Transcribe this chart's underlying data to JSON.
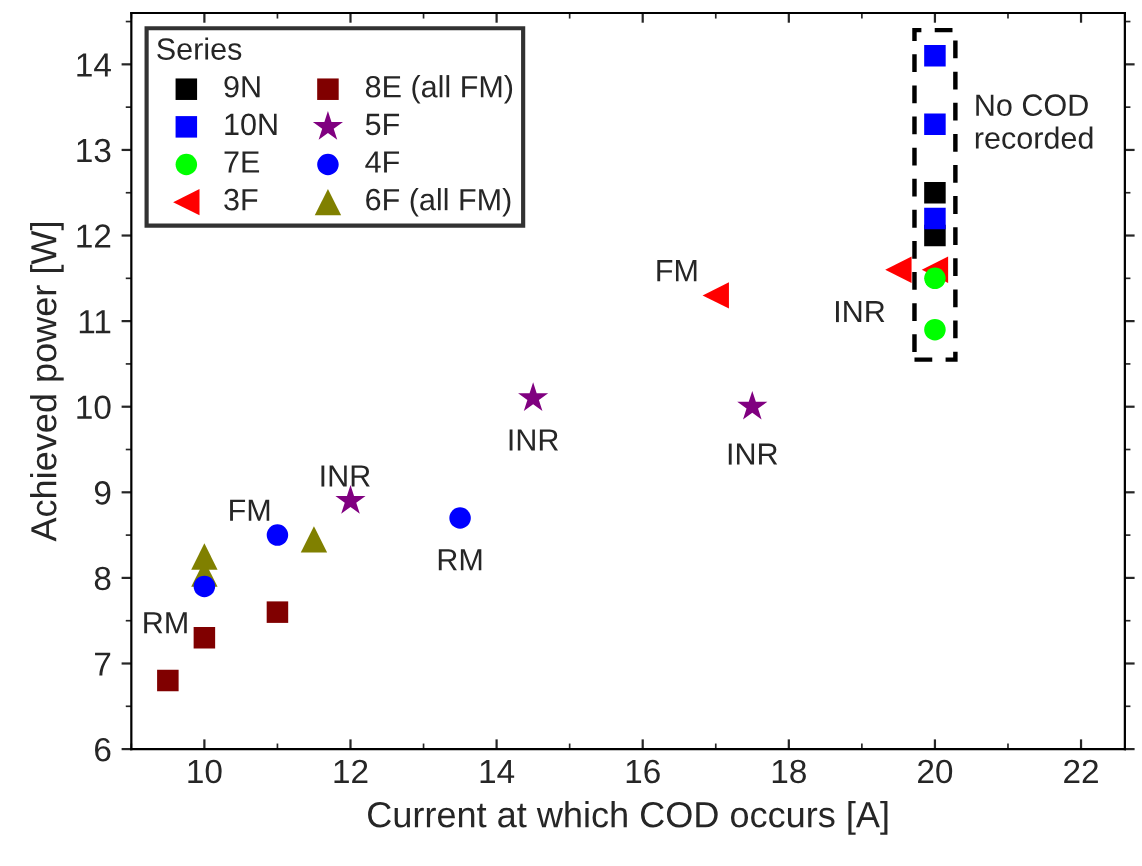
{
  "chart_data": {
    "type": "scatter",
    "xlabel": "Current at which COD occurs [A]",
    "ylabel": "Achieved power [W]",
    "legend_title": "Series",
    "legend": "top left",
    "xlim": [
      9,
      22.6
    ],
    "xticks": [
      10,
      12,
      14,
      16,
      18,
      20,
      22
    ],
    "ylim": [
      6,
      14.6
    ],
    "yticks": [
      6,
      7,
      8,
      9,
      10,
      11,
      12,
      13,
      14
    ],
    "grid": false,
    "series": [
      {
        "name": "9N",
        "color": "#000000",
        "marker": "square",
        "x": [
          20,
          20
        ],
        "values": [
          12.5,
          12.0
        ]
      },
      {
        "name": "10N",
        "color": "#0000ff",
        "marker": "square",
        "x": [
          20,
          20,
          20
        ],
        "values": [
          14.1,
          13.3,
          12.2
        ]
      },
      {
        "name": "7E",
        "color": "#00ff00",
        "marker": "circle",
        "x": [
          20,
          20
        ],
        "values": [
          11.5,
          10.9
        ]
      },
      {
        "name": "3F",
        "color": "#ff0000",
        "marker": "triangle_left",
        "x": [
          17,
          19.5,
          20
        ],
        "values": [
          11.3,
          11.6,
          11.6
        ]
      },
      {
        "name": "8E (all FM)",
        "color": "#800000",
        "marker": "square",
        "x": [
          9.5,
          10,
          11
        ],
        "values": [
          6.8,
          7.3,
          7.6
        ]
      },
      {
        "name": "5F",
        "color": "#800080",
        "marker": "star",
        "x": [
          12,
          14.5,
          17.5
        ],
        "values": [
          8.9,
          10.1,
          10.0
        ]
      },
      {
        "name": "4F",
        "color": "#0000ff",
        "marker": "circle",
        "x": [
          10,
          11,
          13.5
        ],
        "values": [
          7.9,
          8.5,
          8.7
        ]
      },
      {
        "name": "6F (all FM)",
        "color": "#808000",
        "marker": "triangle",
        "x": [
          10,
          10,
          11.5
        ],
        "values": [
          8.25,
          8.05,
          8.45
        ]
      }
    ],
    "annotations": [
      {
        "text": "RM",
        "x": 10,
        "y": 7.9
      },
      {
        "text": "FM",
        "x": 11,
        "y": 8.5
      },
      {
        "text": "INR",
        "x": 12,
        "y": 8.9
      },
      {
        "text": "RM",
        "x": 13.5,
        "y": 8.7
      },
      {
        "text": "INR",
        "x": 14.5,
        "y": 10.1
      },
      {
        "text": "INR",
        "x": 17.5,
        "y": 10.0
      },
      {
        "text": "FM",
        "x": 17,
        "y": 11.3
      },
      {
        "text": "INR",
        "x": 19.5,
        "y": 11.6
      },
      {
        "text": "No COD\nrecorded",
        "x": 20,
        "y": 13.3
      }
    ]
  }
}
